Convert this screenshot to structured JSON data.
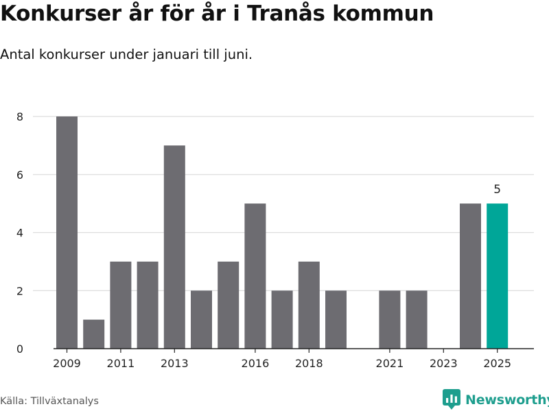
{
  "title": "Konkurser år för år i Tranås kommun",
  "subtitle": "Antal konkurser under januari till juni.",
  "source": "Källa: Tillväxtanalys",
  "brand": {
    "name": "Newsworthy",
    "icon": "newsworthy-logo-icon"
  },
  "colors": {
    "bar": "#6d6c71",
    "highlight": "#00a698",
    "grid": "#dddddd",
    "axis": "#222222",
    "text": "#222222"
  },
  "chart_data": {
    "type": "bar",
    "title": "Konkurser år för år i Tranås kommun",
    "subtitle": "Antal konkurser under januari till juni.",
    "xlabel": "",
    "ylabel": "",
    "categories": [
      "2009",
      "2010",
      "2011",
      "2012",
      "2013",
      "2014",
      "2015",
      "2016",
      "2017",
      "2018",
      "2019",
      "2020",
      "2021",
      "2022",
      "2023",
      "2024",
      "2025"
    ],
    "values": [
      8,
      1,
      3,
      3,
      7,
      2,
      3,
      5,
      2,
      3,
      2,
      0,
      2,
      2,
      0,
      5,
      5
    ],
    "highlight_category": "2025",
    "data_labels": [
      {
        "category": "2025",
        "text": "5"
      }
    ],
    "x_tick_labels": [
      "2009",
      "2011",
      "2013",
      "2016",
      "2018",
      "2021",
      "2023",
      "2025"
    ],
    "y_ticks": [
      0,
      2,
      4,
      6,
      8
    ],
    "ylim": [
      0,
      8
    ],
    "grid": true,
    "legend": "none"
  }
}
